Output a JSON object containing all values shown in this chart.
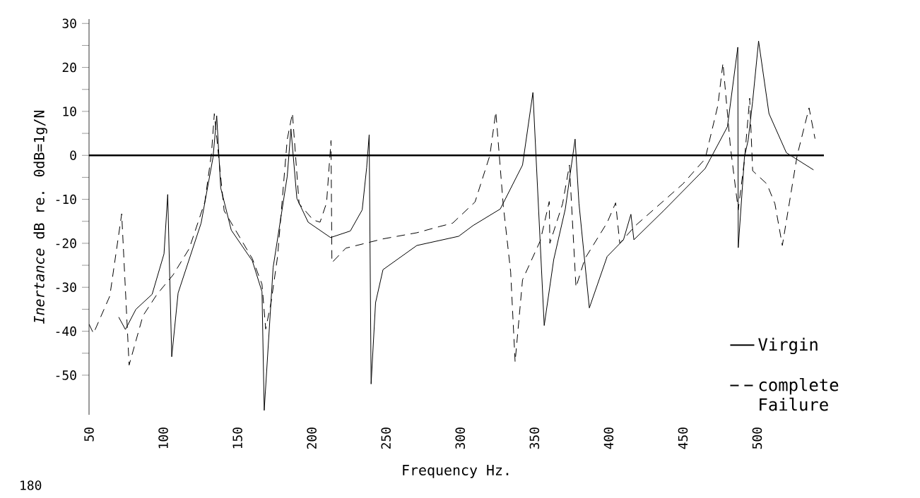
{
  "chart_data": {
    "type": "line",
    "xlabel": "Frequency Hz.",
    "ylabel": "*Inertance*   dB re. 0dB=1g/N",
    "xlim": [
      50,
      545
    ],
    "ylim": [
      -59,
      31
    ],
    "xticks": [
      50,
      100,
      150,
      200,
      250,
      300,
      350,
      400,
      450,
      500
    ],
    "yticks": [
      -50,
      {
        "value": -45,
        "label": null
      },
      -40,
      {
        "value": -35,
        "label": null
      },
      -30,
      {
        "value": -25,
        "label": null
      },
      -20,
      {
        "value": -15,
        "label": null
      },
      -10,
      {
        "value": -5,
        "label": null
      },
      0,
      {
        "value": 5,
        "label": null
      },
      10,
      {
        "value": 15,
        "label": null
      },
      20,
      {
        "value": 25,
        "label": null
      },
      30
    ],
    "grid": false,
    "legend": "bottom right",
    "marker": "none",
    "ref_lines": [
      {
        "axis": "y",
        "value": 0,
        "color": "#000000"
      }
    ],
    "annotations": [
      "180"
    ],
    "series": [
      {
        "name": "Virgin",
        "color": "#000000",
        "line_style": "solid",
        "x": [
          70,
          74.5,
          81.6,
          92.5,
          100.5,
          103,
          105.7,
          110,
          125.5,
          133.5,
          136,
          138.7,
          145.8,
          160,
          166.5,
          168,
          174,
          183.5,
          186,
          190,
          197.6,
          212.7,
          226,
          234,
          237,
          238.7,
          240,
          243,
          248,
          270.8,
          299,
          308.5,
          327,
          342,
          349,
          356.6,
          363,
          370.8,
          377.4,
          380,
          387,
          399,
          410,
          415,
          417,
          437,
          465,
          480,
          487,
          487.3,
          491.5,
          494,
          497,
          501,
          508,
          519.7,
          538
        ],
        "values": [
          -36.8,
          -39.6,
          -35,
          -31.6,
          -22.4,
          -8.9,
          -45.8,
          -31.3,
          -15.4,
          -0.5,
          9,
          -7.4,
          -17,
          -24,
          -31,
          -58,
          -25.5,
          -4.8,
          6,
          -9.8,
          -15.2,
          -18.7,
          -17.2,
          -12.4,
          -2.8,
          4.7,
          -52,
          -33.5,
          -26,
          -20.5,
          -18.4,
          -16,
          -12.2,
          -2.2,
          14.3,
          -38.7,
          -23.7,
          -12.2,
          3.7,
          -10.9,
          -34.7,
          -23,
          -19.2,
          -13.4,
          -19.2,
          -12.6,
          -3,
          6.5,
          24.6,
          -21,
          -0.3,
          3.5,
          12.3,
          26,
          9.5,
          0.6,
          -3.3
        ]
      },
      {
        "name": "complete Failure",
        "color": "#000000",
        "line_style": "dashed",
        "x": [
          50,
          53,
          64,
          72,
          77,
          86.3,
          95.8,
          106.6,
          117.5,
          128,
          132.5,
          134.4,
          141,
          160,
          166.5,
          169,
          172.6,
          177,
          183.5,
          187,
          191.5,
          201,
          205.6,
          210,
          213,
          213.6,
          223,
          248,
          270.8,
          286,
          295,
          310,
          320,
          324,
          329,
          334,
          337,
          342,
          354,
          360,
          360.4,
          369,
          373.6,
          378,
          384,
          399,
          404.7,
          407.5,
          418,
          450,
          465,
          473.6,
          477,
          482,
          487.3,
          491.5,
          495,
          497,
          506.6,
          512,
          517,
          527,
          535,
          539
        ],
        "values": [
          -38.4,
          -40.5,
          -32,
          -13.3,
          -47.7,
          -36.5,
          -31.6,
          -27.2,
          -21.2,
          -10.6,
          0.5,
          9.5,
          -12.6,
          -23.5,
          -29.3,
          -39.5,
          -33.5,
          -23,
          3.6,
          9.6,
          -11,
          -14.7,
          -15.2,
          -10.8,
          3.4,
          -24.4,
          -21.1,
          -19,
          -17.6,
          -16.2,
          -15.4,
          -10.6,
          0,
          9.9,
          -11.3,
          -26.5,
          -47,
          -28.3,
          -19.4,
          -10.5,
          -20,
          -11,
          -2.2,
          -30,
          -23.5,
          -15.3,
          -10.8,
          -20,
          -16,
          -6.5,
          -0.8,
          11.4,
          21,
          2,
          -12.4,
          -1,
          13,
          -3.5,
          -6.5,
          -11,
          -20.5,
          0,
          10.8,
          3.8
        ]
      }
    ]
  }
}
